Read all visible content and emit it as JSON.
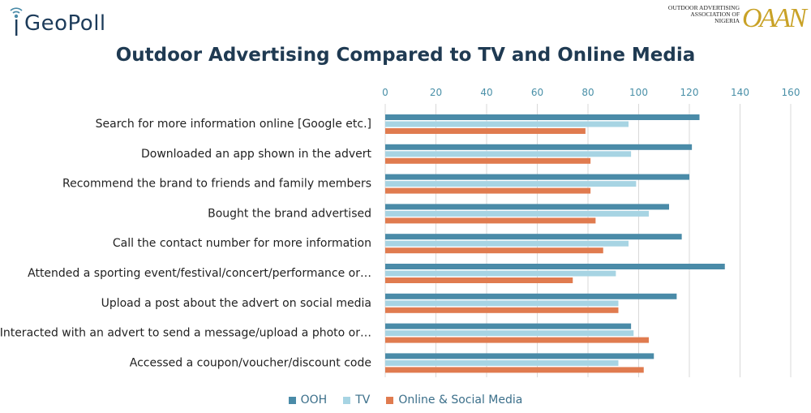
{
  "header": {
    "brand_logo_text": "GeoPoll",
    "partner_org_text": "OUTDOOR ADVERTISING ASSOCIATION OF NIGERIA",
    "partner_logo_text": "OAAN"
  },
  "colors": {
    "ooh": "#4a8ba8",
    "tv": "#a7d4e3",
    "online": "#e07b4f",
    "grid": "#d9d9d9",
    "tick": "#4a90a8"
  },
  "chart_data": {
    "type": "bar",
    "orientation": "horizontal",
    "title": "Outdoor Advertising Compared to TV and Online Media",
    "xlim": [
      0,
      160
    ],
    "x_ticks": [
      0,
      20,
      40,
      60,
      80,
      100,
      120,
      140,
      160
    ],
    "x_axis_position": "top",
    "grid": true,
    "legend_position": "bottom",
    "categories": [
      "Search for more information online [Google etc.]",
      "Downloaded an app shown in the advert",
      "Recommend the brand to friends and family members",
      "Bought the brand advertised",
      "Call the contact number for more information",
      "Attended a sporting event/festival/concert/performance or…",
      "Upload a post about the advert on social media",
      "Interacted with an advert to send a message/upload a photo or…",
      "Accessed a coupon/voucher/discount code"
    ],
    "series": [
      {
        "name": "OOH",
        "values": [
          124,
          121,
          120,
          112,
          117,
          134,
          115,
          97,
          106
        ]
      },
      {
        "name": "TV",
        "values": [
          96,
          97,
          99,
          104,
          96,
          91,
          92,
          98,
          92
        ]
      },
      {
        "name": "Online & Social Media",
        "values": [
          79,
          81,
          81,
          83,
          86,
          74,
          92,
          104,
          102
        ]
      }
    ]
  }
}
